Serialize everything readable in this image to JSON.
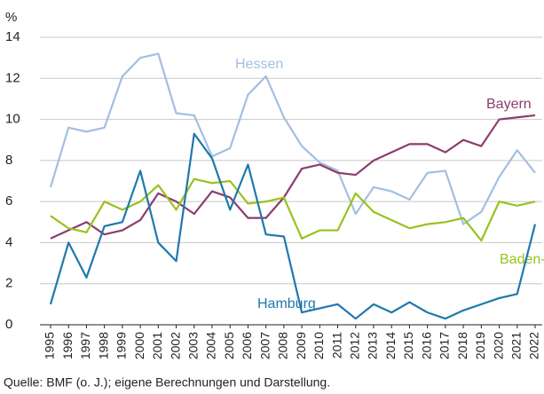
{
  "chart_data": {
    "type": "line",
    "y_label": "%",
    "source": "Quelle: BMF (o. J.); eigene Berechnungen und Darstellung.",
    "x": [
      1995,
      1996,
      1997,
      1998,
      1999,
      2000,
      2001,
      2002,
      2003,
      2004,
      2005,
      2006,
      2007,
      2008,
      2009,
      2010,
      2011,
      2012,
      2013,
      2014,
      2015,
      2016,
      2017,
      2018,
      2019,
      2020,
      2021,
      2022
    ],
    "xlim": [
      1995,
      2022
    ],
    "xticks": [
      1995,
      1996,
      1997,
      1998,
      1999,
      2000,
      2001,
      2002,
      2003,
      2004,
      2005,
      2006,
      2007,
      2008,
      2009,
      2010,
      2011,
      2012,
      2013,
      2014,
      2015,
      2016,
      2017,
      2018,
      2019,
      2020,
      2021,
      2022
    ],
    "ylim": [
      0,
      14
    ],
    "yticks": [
      0,
      2,
      4,
      6,
      8,
      10,
      12,
      14
    ],
    "grid": true,
    "series": [
      {
        "name": "Hessen",
        "color": "#a3bfe0",
        "values": [
          6.7,
          9.6,
          9.4,
          9.6,
          12.1,
          13.0,
          13.2,
          10.3,
          10.2,
          8.2,
          8.6,
          11.2,
          12.1,
          10.1,
          8.7,
          7.9,
          7.5,
          5.4,
          6.7,
          6.5,
          6.1,
          7.4,
          7.5,
          4.9,
          5.5,
          7.2,
          8.5,
          7.4
        ]
      },
      {
        "name": "Bayern",
        "color": "#8c3d6e",
        "values": [
          4.2,
          4.6,
          5.0,
          4.4,
          4.6,
          5.1,
          6.4,
          6.0,
          5.4,
          6.5,
          6.2,
          5.2,
          5.2,
          6.2,
          7.6,
          7.8,
          7.4,
          7.3,
          8.0,
          8.4,
          8.8,
          8.8,
          8.4,
          9.0,
          8.7,
          10.0,
          10.1,
          10.2
        ]
      },
      {
        "name": "Baden-Württemberg",
        "color": "#99c21c",
        "values": [
          5.3,
          4.7,
          4.5,
          6.0,
          5.6,
          6.0,
          6.8,
          5.6,
          7.1,
          6.9,
          7.0,
          5.9,
          6.0,
          6.2,
          4.2,
          4.6,
          4.6,
          6.4,
          5.5,
          5.1,
          4.7,
          4.9,
          5.0,
          5.2,
          4.1,
          6.0,
          5.8,
          6.0
        ]
      },
      {
        "name": "Hamburg",
        "color": "#1f78ad",
        "values": [
          1.0,
          4.0,
          2.3,
          4.8,
          5.0,
          7.5,
          4.0,
          3.1,
          9.3,
          8.1,
          5.6,
          7.8,
          4.4,
          4.3,
          0.6,
          0.8,
          1.0,
          0.3,
          1.0,
          0.6,
          1.1,
          0.6,
          0.3,
          0.7,
          1.0,
          1.3,
          1.5,
          4.9
        ]
      }
    ]
  }
}
